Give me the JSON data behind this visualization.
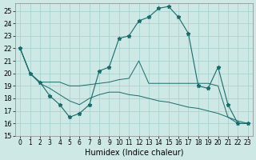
{
  "xlabel": "Humidex (Indice chaleur)",
  "bg_color": "#cde8e5",
  "line_color": "#1a6b6b",
  "grid_color": "#a8d4d0",
  "xlim": [
    -0.5,
    23.5
  ],
  "ylim": [
    15,
    25.6
  ],
  "yticks": [
    15,
    16,
    17,
    18,
    19,
    20,
    21,
    22,
    23,
    24,
    25
  ],
  "xticks": [
    0,
    1,
    2,
    3,
    4,
    5,
    6,
    7,
    8,
    9,
    10,
    11,
    12,
    13,
    14,
    15,
    16,
    17,
    18,
    19,
    20,
    21,
    22,
    23
  ],
  "line1_x": [
    0,
    1,
    2,
    3,
    4,
    5,
    6,
    7,
    8,
    9,
    10,
    11,
    12,
    13,
    14,
    15,
    16,
    17,
    18,
    19,
    20,
    21,
    22,
    23
  ],
  "line1_y": [
    22,
    20,
    19.3,
    18.2,
    17.5,
    16.5,
    16.8,
    17.5,
    20.2,
    20.5,
    22.8,
    23.0,
    24.2,
    24.5,
    25.2,
    25.35,
    24.5,
    23.2,
    19.0,
    18.8,
    20.5,
    17.5,
    16.0,
    16.0
  ],
  "line2_x": [
    0,
    1,
    2,
    3,
    4,
    5,
    6,
    7,
    8,
    9,
    10,
    11,
    12,
    13,
    14,
    15,
    16,
    17,
    18,
    19,
    20,
    21,
    22,
    23
  ],
  "line2_y": [
    22,
    20,
    19.3,
    19.3,
    19.3,
    19.0,
    19.0,
    19.1,
    19.2,
    19.3,
    19.5,
    19.6,
    21.0,
    19.2,
    19.2,
    19.2,
    19.2,
    19.2,
    19.2,
    19.2,
    19.0,
    16.5,
    16.0,
    16.0
  ],
  "line3_x": [
    0,
    1,
    2,
    3,
    4,
    5,
    6,
    7,
    8,
    9,
    10,
    11,
    12,
    13,
    14,
    15,
    16,
    17,
    18,
    19,
    20,
    21,
    22,
    23
  ],
  "line3_y": [
    22,
    20,
    19.2,
    18.8,
    18.3,
    17.8,
    17.5,
    18.0,
    18.3,
    18.5,
    18.5,
    18.3,
    18.2,
    18.0,
    17.8,
    17.7,
    17.5,
    17.3,
    17.2,
    17.0,
    16.8,
    16.5,
    16.2,
    16.0
  ]
}
